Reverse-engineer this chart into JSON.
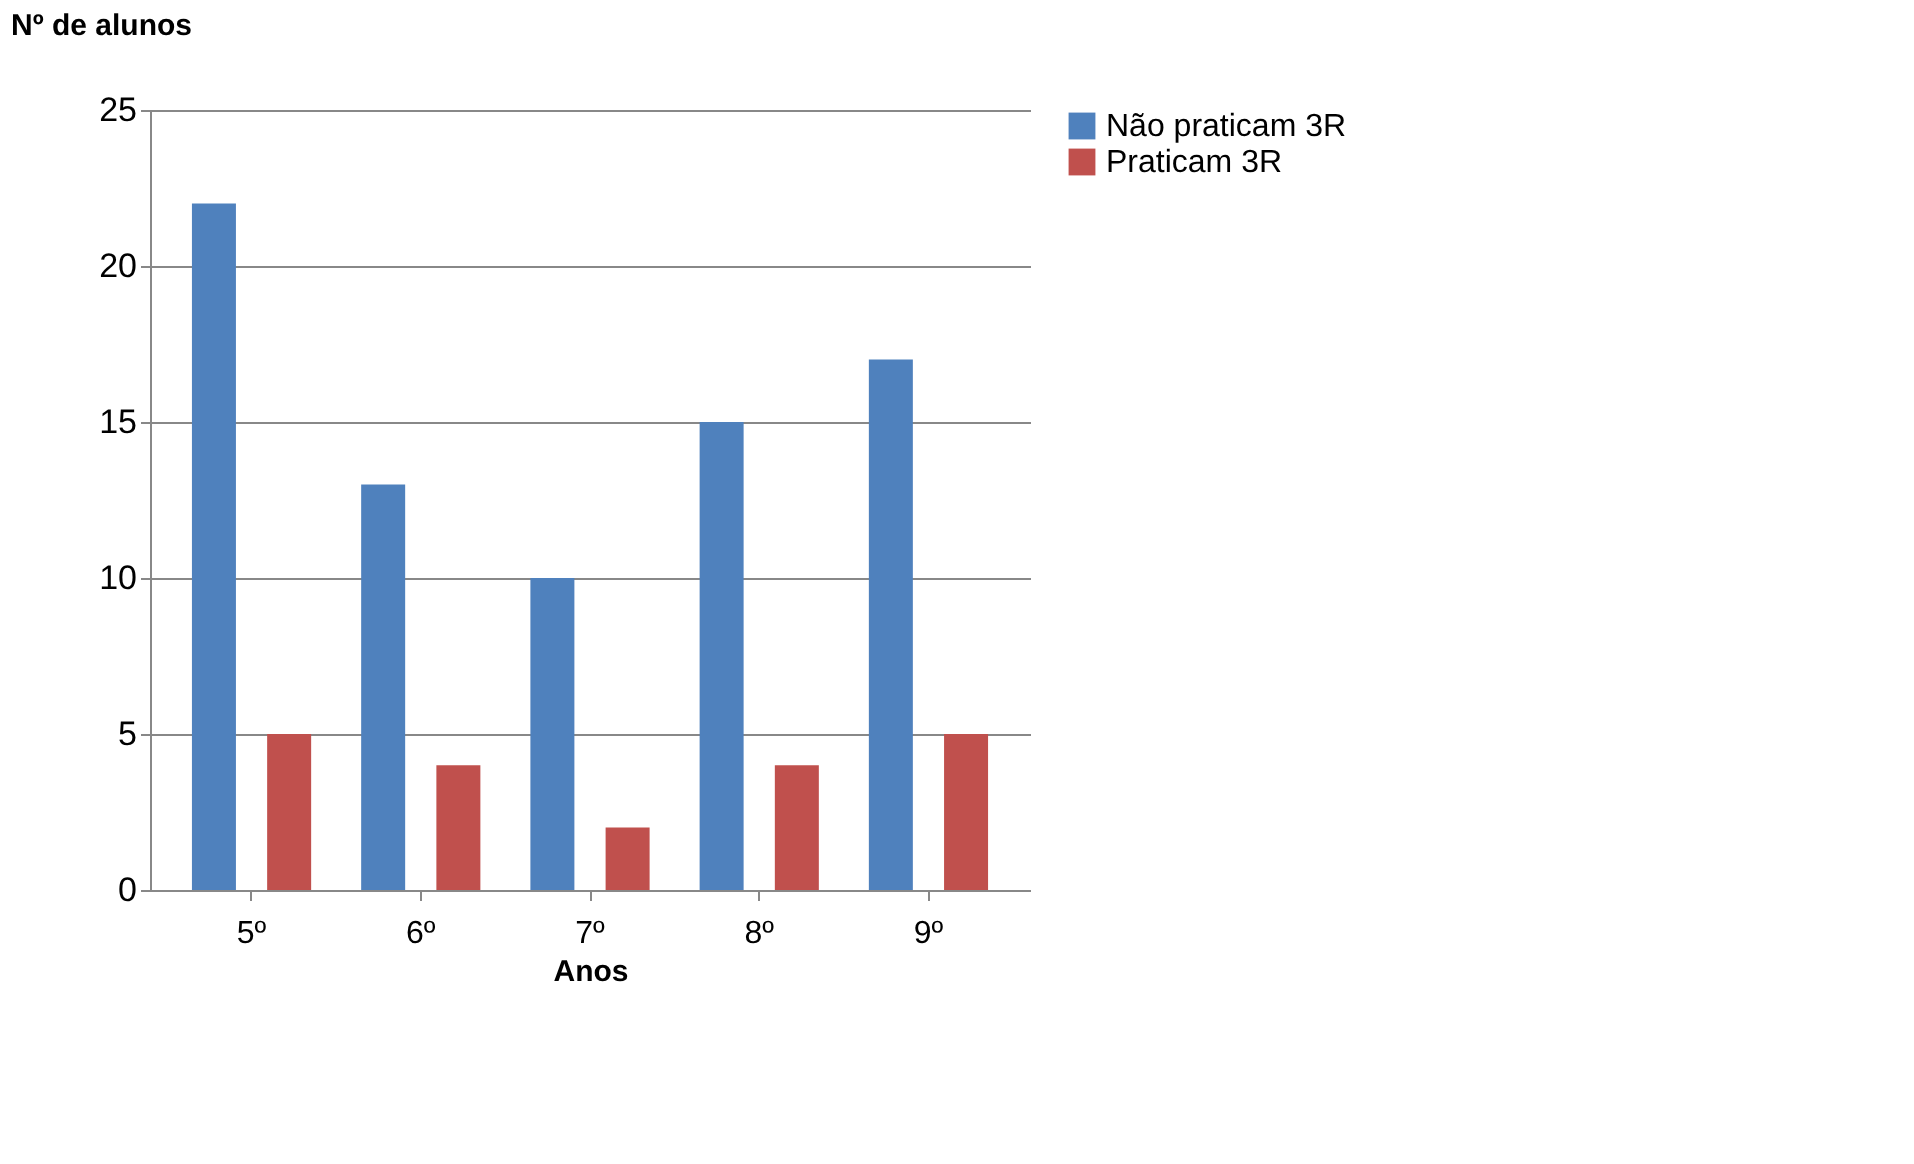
{
  "chart_data": {
    "type": "bar",
    "ylabel": "Nº de alunos",
    "xlabel": "Anos",
    "categories": [
      "5º",
      "6º",
      "7º",
      "8º",
      "9º"
    ],
    "series": [
      {
        "name": "Não praticam 3R",
        "color": "#4f81bd",
        "values": [
          22,
          13,
          10,
          15,
          17
        ]
      },
      {
        "name": "Praticam 3R",
        "color": "#c0504d",
        "values": [
          5,
          4,
          2,
          4,
          5
        ]
      }
    ],
    "ylim": [
      0,
      25
    ],
    "yticks": [
      0,
      5,
      10,
      15,
      20,
      25
    ],
    "grid": "y",
    "legend": "right"
  }
}
